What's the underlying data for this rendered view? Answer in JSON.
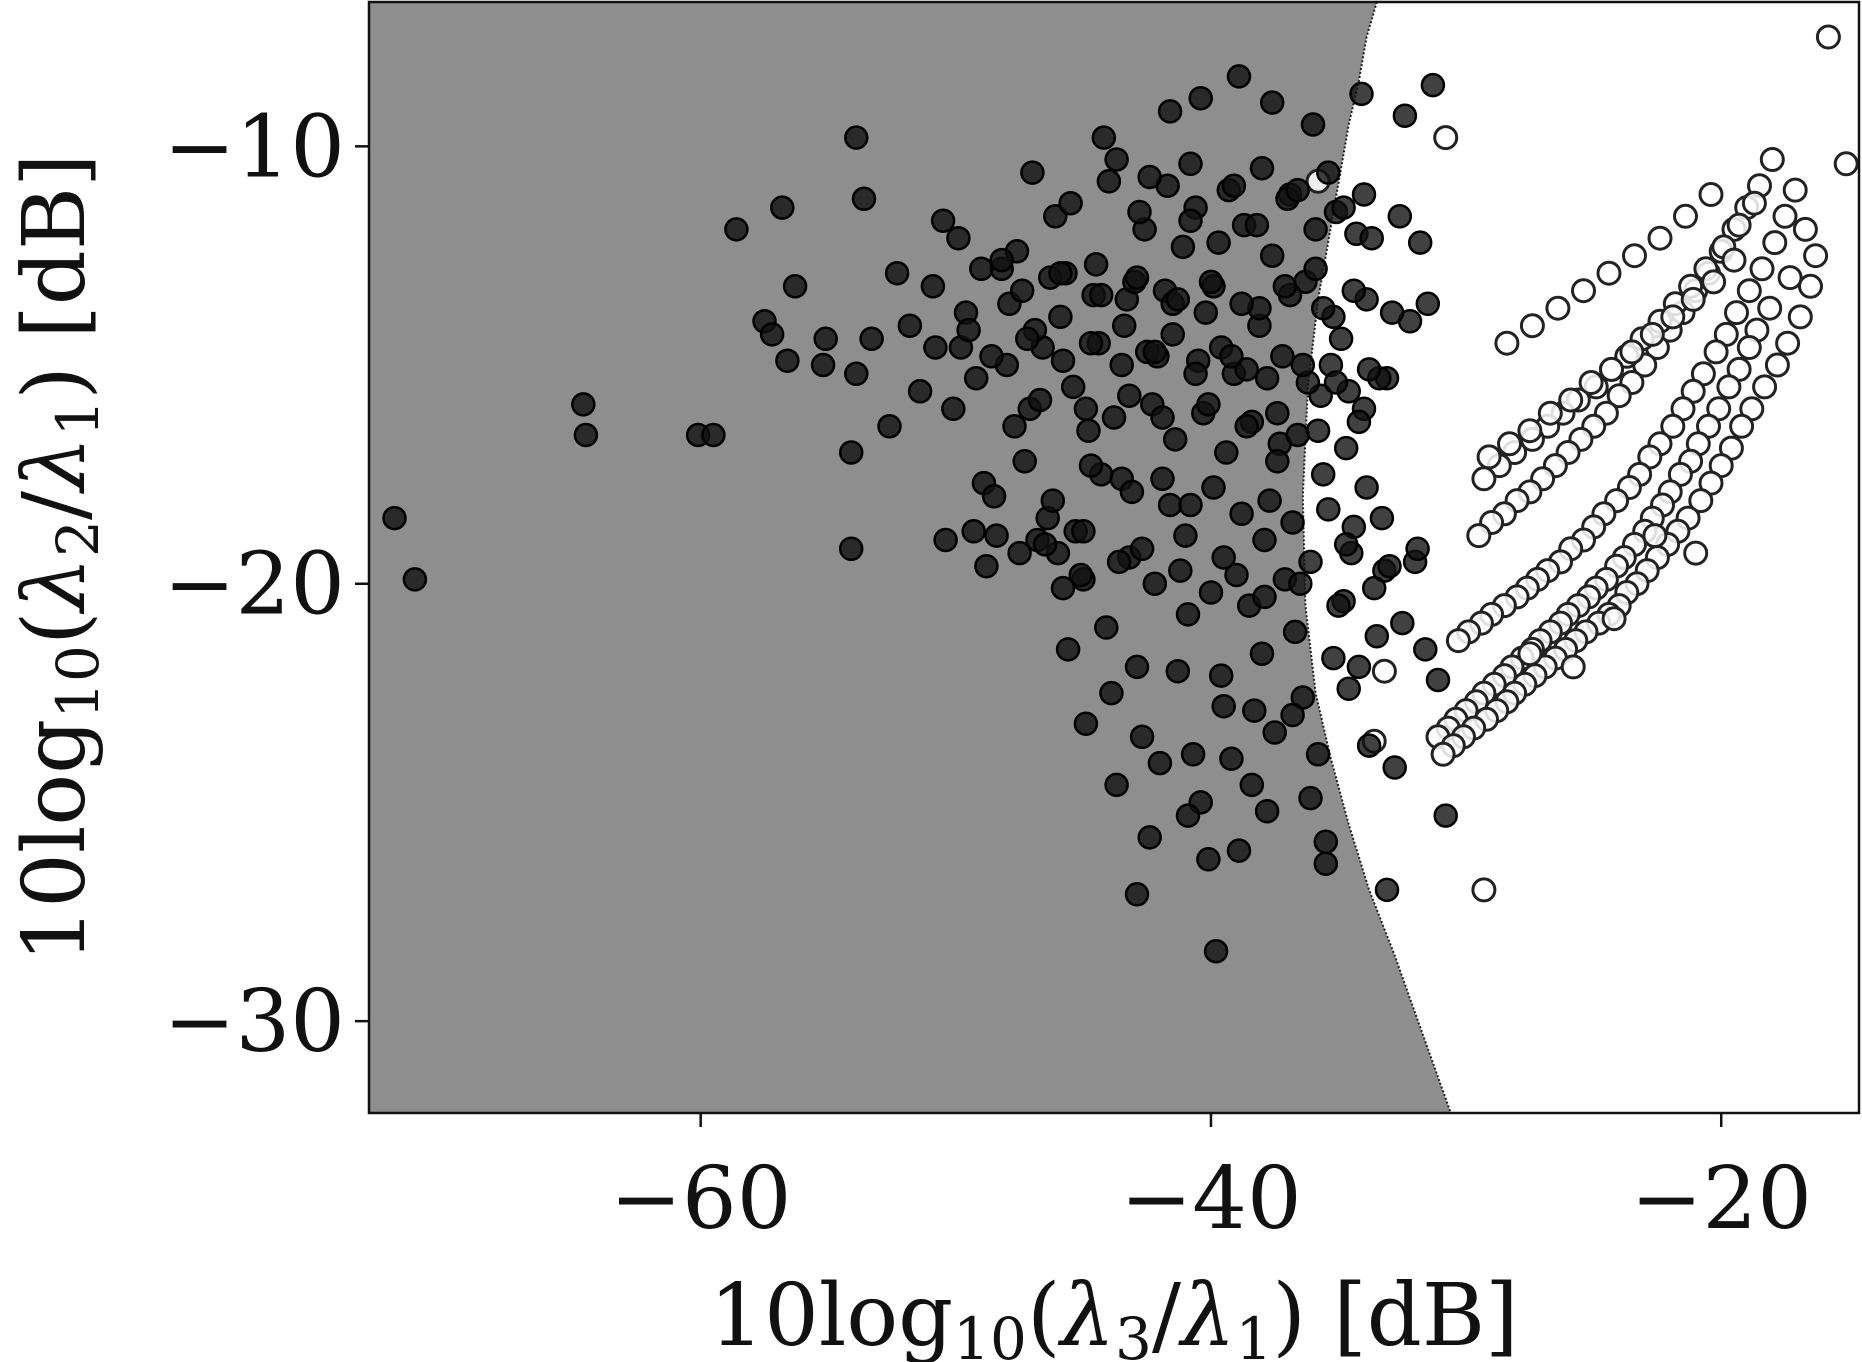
{
  "chart_data": {
    "type": "scatter",
    "title": "",
    "xlabel": {
      "prefix": "10log",
      "sub": "10",
      "mid": "(",
      "lambda_num": "λ",
      "num_sub": "3",
      "slash": "/",
      "lambda_den": "λ",
      "den_sub": "1",
      "suffix": ") [dB]"
    },
    "ylabel": {
      "prefix": "10log",
      "sub": "10",
      "mid": "(",
      "lambda_num": "λ",
      "num_sub": "2",
      "slash": "/",
      "lambda_den": "λ",
      "den_sub": "1",
      "suffix": ") [dB]"
    },
    "xlim": [
      -73.0,
      -14.6
    ],
    "ylim": [
      -32.1,
      -6.7
    ],
    "xticks": [
      -60,
      -40,
      -20
    ],
    "yticks": [
      -10,
      -20,
      -30
    ],
    "xtick_labels": [
      "−60",
      "−40",
      "−20"
    ],
    "ytick_labels": [
      "−10",
      "−20",
      "−30"
    ],
    "decision_boundary": {
      "x": [
        -33.5,
        -33.9,
        -34.2,
        -34.6,
        -34.9,
        -35.2,
        -35.5,
        -35.8,
        -36.0,
        -36.2,
        -36.4,
        -36.3,
        -35.9,
        -35.3,
        -34.6,
        -33.8,
        -32.8,
        -31.7,
        -30.6
      ],
      "y": [
        -6.7,
        -7.5,
        -8.5,
        -9.5,
        -10.5,
        -11.5,
        -12.5,
        -13.5,
        -14.5,
        -15.5,
        -18.0,
        -20.5,
        -22.5,
        -24.0,
        -25.5,
        -27.0,
        -28.5,
        -30.3,
        -32.1
      ],
      "left_region_color": "#8e8e8e",
      "right_region_color": "#ffffff"
    },
    "series": [
      {
        "marker": "filled",
        "color": "#111111",
        "x": [
          -72.0,
          -71.2,
          -64.6,
          -64.5,
          -60.1,
          -59.5,
          -58.6,
          -57.5,
          -57.2,
          -56.8,
          -56.6,
          -56.3,
          -55.1,
          -54.1,
          -54.1,
          -53.9,
          -53.9,
          -53.6,
          -53.3,
          -51.4,
          -50.5,
          -50.1,
          -49.8,
          -49.6,
          -49.2,
          -48.9,
          -48.5,
          -48.2,
          -48.0,
          -47.7,
          -47.3,
          -47.1,
          -46.8,
          -46.4,
          -46.2,
          -46.0,
          -45.8,
          -45.6,
          -45.3,
          -45.0,
          -44.9,
          -44.3,
          -44.1,
          -43.9,
          -43.7,
          -43.5,
          -43.2,
          -42.9,
          -42.7,
          -42.4,
          -42.0,
          -41.6,
          -41.3,
          -40.9,
          -40.7,
          -40.4,
          -40.1,
          -39.8,
          -39.5,
          -39.2,
          -38.9,
          -38.5,
          -38.3,
          -38.0,
          -37.8,
          -37.5,
          -37.1,
          -36.7,
          -36.4,
          -36.1,
          -35.8,
          -35.5,
          -35.2,
          -34.8,
          -34.5,
          -34.2,
          -33.8,
          -33.5,
          -33.2,
          -32.8,
          -32.5,
          -32.0,
          -31.6,
          -31.1,
          -30.8,
          -55.2,
          -52.6,
          -49.3,
          -47.6,
          -46.6,
          -45.7,
          -44.8,
          -43.3,
          -42.1,
          -41.1,
          -40.2,
          -39.1,
          -38.1,
          -37.3,
          -36.3,
          -35.7,
          -34.9,
          -34.0,
          -33.1,
          -46.1,
          -44.5,
          -42.6,
          -41.8,
          -40.6,
          -39.7,
          -38.7,
          -37.6,
          -36.9,
          -35.9,
          -35.1,
          -34.3,
          -45.4,
          -43.8,
          -42.3,
          -41.4,
          -40.3,
          -39.4,
          -38.4,
          -37.4,
          -36.6,
          -35.6,
          -34.7,
          -33.9,
          -44.7,
          -43.1,
          -41.9,
          -40.8,
          -39.9,
          -38.8,
          -37.7,
          -36.8,
          -35.4,
          -34.4,
          -33.3,
          -47.9,
          -46.9,
          -45.9,
          -44.4,
          -43.4,
          -42.5,
          -41.5,
          -40.5,
          -39.6,
          -38.6,
          -37.2,
          -36.2,
          -35.3,
          -34.6,
          -33.4,
          -47.0,
          -45.5,
          -44.0,
          -42.8,
          -41.7,
          -40.8,
          -39.3,
          -38.2,
          -37.0,
          -35.9,
          -34.8,
          -33.7,
          -32.6,
          -31.8,
          -50.4,
          -48.8,
          -47.5,
          -45.1,
          -43.6,
          -42.2,
          -41.2,
          -40.0,
          -39.0,
          -37.9,
          -36.5,
          -35.0,
          -33.6,
          -44.2,
          -41.6,
          -40.4,
          -38.9,
          -37.6,
          -36.0,
          -34.1,
          -32.4,
          -31.3,
          -42.9,
          -40.9,
          -39.6,
          -38.4,
          -36.8,
          -35.5,
          -34.6,
          -33.1,
          -49.9,
          -48.2,
          -46.3,
          -44.6,
          -43.0,
          -41.5,
          -39.9,
          -38.1,
          -36.9,
          -35.2,
          -33.9,
          -32.2,
          -31.5,
          -46.7,
          -44.9,
          -43.2,
          -41.9,
          -40.1,
          -38.6,
          -37.4,
          -35.8,
          -34.2,
          -51.8,
          -50.8,
          -49.5,
          -48.6,
          -47.2,
          -45.8,
          -44.7,
          -43.5,
          -42.2,
          -40.6,
          -39.2,
          -37.8,
          -36.4,
          -35.1,
          -33.8,
          -48.4,
          -46.5,
          -45.0,
          -42.7,
          -41.0,
          -39.5,
          -37.9,
          -36.1,
          -34.7,
          -33.0,
          -31.9,
          -43.7,
          -42.4,
          -40.8,
          -39.1,
          -38.0,
          -36.6,
          -35.4,
          -34.0,
          -52.3,
          -50.9,
          -49.0,
          -47.4,
          -45.9,
          -44.3,
          -42.9,
          -41.3,
          -40.0,
          -38.8,
          -37.1,
          -35.6,
          -34.4,
          -32.9
        ],
        "y": [
          -18.5,
          -19.9,
          -15.9,
          -16.6,
          -16.6,
          -16.6,
          -11.9,
          -14.0,
          -14.3,
          -11.4,
          -14.9,
          -13.2,
          -14.4,
          -19.2,
          -17.0,
          -15.2,
          -9.8,
          -11.2,
          -14.4,
          -15.6,
          -11.7,
          -16.0,
          -14.6,
          -13.8,
          -15.3,
          -17.7,
          -18.0,
          -12.8,
          -15.0,
          -16.4,
          -17.2,
          -16.0,
          -19.0,
          -18.5,
          -18.1,
          -19.3,
          -20.1,
          -21.5,
          -18.8,
          -19.9,
          -23.2,
          -17.5,
          -21.0,
          -22.5,
          -24.6,
          -17.6,
          -19.4,
          -21.9,
          -23.5,
          -25.8,
          -24.1,
          -18.2,
          -22.0,
          -20.7,
          -23.9,
          -25.0,
          -26.3,
          -28.4,
          -22.8,
          -24.0,
          -26.1,
          -20.5,
          -22.9,
          -21.6,
          -25.2,
          -23.4,
          -19.9,
          -21.1,
          -22.6,
          -24.9,
          -23.9,
          -26.4,
          -21.7,
          -20.4,
          -19.3,
          -21.9,
          -23.7,
          -21.2,
          -19.7,
          -24.2,
          -20.9,
          -19.5,
          -21.5,
          -22.2,
          -25.3,
          -15.0,
          -16.4,
          -18.8,
          -12.4,
          -14.6,
          -12.9,
          -16.5,
          -13.5,
          -14.8,
          -12.3,
          -13.8,
          -15.2,
          -14.1,
          -16.8,
          -13.1,
          -15.7,
          -14.4,
          -16.0,
          -15.3,
          -11.6,
          -12.7,
          -11.9,
          -13.3,
          -11.4,
          -12.2,
          -11.8,
          -12.5,
          -11.1,
          -12.8,
          -11.5,
          -12.0,
          -15.5,
          -16.2,
          -15.9,
          -16.7,
          -16.1,
          -17.0,
          -16.3,
          -17.2,
          -16.6,
          -17.5,
          -16.9,
          -17.8,
          -17.3,
          -17.9,
          -17.6,
          -18.2,
          -17.8,
          -18.4,
          -18.1,
          -18.6,
          -18.3,
          -18.7,
          -18.5,
          -13.6,
          -14.2,
          -13.9,
          -14.5,
          -14.1,
          -14.7,
          -14.3,
          -14.9,
          -14.6,
          -15.1,
          -14.8,
          -15.4,
          -15.0,
          -15.6,
          -15.3,
          -10.6,
          -11.3,
          -10.8,
          -11.5,
          -10.9,
          -11.7,
          -11.0,
          -11.8,
          -11.2,
          -11.9,
          -11.4,
          -12.1,
          -11.6,
          -12.2,
          -19.0,
          -19.6,
          -19.3,
          -19.8,
          -19.5,
          -20.0,
          -19.7,
          -20.2,
          -19.8,
          -20.3,
          -20.0,
          -20.5,
          -20.1,
          -9.8,
          -9.2,
          -8.9,
          -8.4,
          -9.0,
          -9.5,
          -8.8,
          -9.3,
          -8.6,
          -27.1,
          -25.3,
          -22.1,
          -24.6,
          -23.0,
          -25.9,
          -22.4,
          -27.0,
          -12.1,
          -12.6,
          -13.0,
          -13.4,
          -13.1,
          -13.6,
          -13.2,
          -13.7,
          -13.4,
          -13.9,
          -13.5,
          -14.0,
          -13.6,
          -15.8,
          -16.0,
          -15.7,
          -16.2,
          -15.9,
          -16.4,
          -16.1,
          -16.5,
          -16.3,
          -14.1,
          -14.6,
          -14.2,
          -14.8,
          -14.4,
          -14.9,
          -14.5,
          -15.0,
          -14.7,
          -15.2,
          -14.8,
          -15.3,
          -15.0,
          -15.4,
          -15.1,
          -18.9,
          -19.1,
          -18.8,
          -19.2,
          -18.9,
          -19.4,
          -19.0,
          -19.5,
          -19.1,
          -19.6,
          -19.2,
          -10.3,
          -10.7,
          -10.4,
          -10.9,
          -10.5,
          -11.0,
          -10.6,
          -11.1,
          -12.9,
          -13.2,
          -12.8,
          -13.3,
          -12.9,
          -13.4,
          -13.0,
          -13.5,
          -13.1,
          -13.6,
          -13.2,
          -13.7,
          -13.3,
          -13.8
        ]
      },
      {
        "marker": "hollow",
        "color": "#ffffff",
        "edge": "#222222",
        "x": [
          -15.8,
          -15.1,
          -16.7,
          -17.3,
          -18.1,
          -18.6,
          -18.9,
          -19.3,
          -19.7,
          -20.1,
          -20.5,
          -20.9,
          -21.2,
          -21.6,
          -22.0,
          -22.3,
          -22.7,
          -23.0,
          -23.4,
          -23.8,
          -24.1,
          -24.5,
          -24.9,
          -25.2,
          -25.6,
          -26.0,
          -26.3,
          -26.7,
          -27.1,
          -27.4,
          -27.8,
          -28.2,
          -28.5,
          -28.9,
          -29.3,
          -29.6,
          -30.0,
          -30.4,
          -30.7,
          -31.1,
          -16.3,
          -16.5,
          -16.9,
          -17.4,
          -17.8,
          -18.3,
          -18.8,
          -19.2,
          -19.6,
          -20.0,
          -20.4,
          -20.8,
          -21.3,
          -21.7,
          -22.1,
          -22.5,
          -22.9,
          -23.3,
          -23.7,
          -24.0,
          -24.4,
          -24.8,
          -25.3,
          -25.7,
          -26.1,
          -26.5,
          -26.9,
          -27.3,
          -27.7,
          -28.1,
          -28.4,
          -28.8,
          -29.2,
          -29.7,
          -30.1,
          -30.5,
          -30.9,
          -17.1,
          -17.5,
          -17.9,
          -18.4,
          -18.9,
          -19.4,
          -19.8,
          -20.2,
          -20.7,
          -21.1,
          -21.5,
          -21.9,
          -22.4,
          -22.8,
          -23.2,
          -23.6,
          -24.1,
          -24.6,
          -25.0,
          -25.4,
          -25.9,
          -26.3,
          -26.8,
          -27.2,
          -27.6,
          -28.0,
          -28.5,
          -29.0,
          -29.4,
          -29.9,
          -30.3,
          -18.0,
          -18.5,
          -19.0,
          -19.5,
          -20.0,
          -20.5,
          -21.0,
          -21.5,
          -22.0,
          -22.5,
          -23.0,
          -23.5,
          -24.0,
          -24.5,
          -25.0,
          -25.5,
          -26.0,
          -26.5,
          -27.0,
          -27.5,
          -28.0,
          -28.5,
          -29.0,
          -29.5,
          -18.7,
          -19.3,
          -19.9,
          -20.6,
          -21.2,
          -21.8,
          -22.4,
          -23.1,
          -23.7,
          -24.3,
          -24.9,
          -25.6,
          -26.2,
          -26.8,
          -27.4,
          -28.1,
          -28.7,
          -29.3,
          -19.5,
          -20.3,
          -21.1,
          -21.9,
          -22.7,
          -23.5,
          -24.3,
          -25.1,
          -25.9,
          -26.7,
          -27.5,
          -28.3,
          -29.1,
          -20.4,
          -21.4,
          -22.4,
          -23.4,
          -24.4,
          -25.4,
          -26.4,
          -27.4,
          -28.4,
          -21.0,
          -22.6,
          -24.2,
          -25.8,
          -27.5,
          -29.3,
          -30.8,
          -33.2,
          -33.6,
          -35.8
        ],
        "y": [
          -7.5,
          -10.4,
          -11.9,
          -13.0,
          -13.7,
          -14.2,
          -14.6,
          -15.1,
          -15.5,
          -16.0,
          -16.4,
          -16.8,
          -17.2,
          -17.5,
          -17.9,
          -18.2,
          -18.5,
          -18.8,
          -19.1,
          -19.4,
          -19.6,
          -19.9,
          -20.1,
          -20.3,
          -20.5,
          -20.7,
          -20.9,
          -21.1,
          -21.3,
          -21.5,
          -21.7,
          -21.9,
          -22.1,
          -22.3,
          -22.5,
          -22.7,
          -22.9,
          -23.1,
          -23.3,
          -23.5,
          -12.5,
          -13.2,
          -13.9,
          -14.5,
          -15.0,
          -15.5,
          -16.0,
          -16.4,
          -16.9,
          -17.3,
          -17.7,
          -18.1,
          -18.5,
          -18.8,
          -19.1,
          -19.4,
          -19.7,
          -20.0,
          -20.2,
          -20.5,
          -20.7,
          -20.9,
          -21.1,
          -21.3,
          -21.5,
          -21.7,
          -21.9,
          -22.1,
          -22.3,
          -22.5,
          -22.7,
          -22.9,
          -23.1,
          -23.3,
          -23.5,
          -23.7,
          -23.9,
          -11.0,
          -11.6,
          -12.2,
          -12.8,
          -13.3,
          -13.8,
          -14.3,
          -14.7,
          -15.2,
          -15.6,
          -16.0,
          -16.4,
          -16.8,
          -17.1,
          -17.5,
          -17.8,
          -18.1,
          -18.4,
          -18.7,
          -19.0,
          -19.2,
          -19.5,
          -19.7,
          -19.9,
          -20.1,
          -20.3,
          -20.5,
          -20.7,
          -20.9,
          -21.1,
          -21.3,
          -10.3,
          -10.9,
          -11.4,
          -11.9,
          -12.4,
          -12.9,
          -13.3,
          -13.8,
          -14.2,
          -14.6,
          -15.0,
          -15.4,
          -15.7,
          -16.1,
          -16.4,
          -16.7,
          -17.0,
          -17.3,
          -17.6,
          -17.9,
          -18.1,
          -18.4,
          -18.6,
          -18.9,
          -11.3,
          -11.8,
          -12.3,
          -12.8,
          -13.2,
          -13.6,
          -14.0,
          -14.4,
          -14.8,
          -15.1,
          -15.5,
          -15.8,
          -16.1,
          -16.4,
          -16.7,
          -17.0,
          -17.3,
          -17.6,
          -12.6,
          -13.1,
          -13.5,
          -13.9,
          -14.3,
          -14.7,
          -15.1,
          -15.4,
          -15.8,
          -16.1,
          -16.5,
          -16.8,
          -17.1,
          -11.1,
          -11.6,
          -12.1,
          -12.5,
          -12.9,
          -13.3,
          -13.7,
          -14.1,
          -14.5,
          -19.3,
          -18.9,
          -20.8,
          -21.9,
          -21.6,
          -27.0,
          -9.8,
          -22.0,
          -23.6,
          -10.8
        ]
      }
    ]
  }
}
